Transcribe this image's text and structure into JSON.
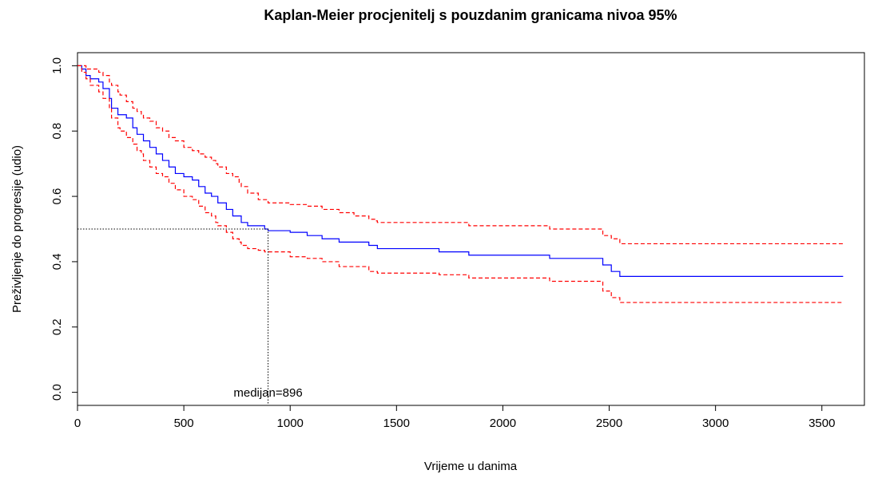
{
  "chart_data": {
    "type": "step",
    "title": "Kaplan-Meier procjenitelj s pouzdanim granicama nivoa 95%",
    "xlabel": "Vrijeme u danima",
    "ylabel": "Preživljenje do progresije (udio)",
    "x": [
      0,
      20,
      40,
      60,
      100,
      120,
      150,
      160,
      190,
      200,
      230,
      260,
      280,
      300,
      310,
      340,
      370,
      400,
      430,
      460,
      500,
      540,
      570,
      600,
      630,
      650,
      660,
      700,
      730,
      760,
      770,
      800,
      850,
      880,
      896,
      1000,
      1080,
      1150,
      1230,
      1300,
      1370,
      1400,
      1410,
      1700,
      1840,
      2220,
      2470,
      2510,
      2550,
      3600
    ],
    "series": [
      {
        "color": "#0000ff",
        "dashed": false,
        "values": [
          1.0,
          0.99,
          0.97,
          0.96,
          0.95,
          0.93,
          0.9,
          0.87,
          0.85,
          0.85,
          0.84,
          0.81,
          0.79,
          0.79,
          0.77,
          0.75,
          0.73,
          0.71,
          0.69,
          0.67,
          0.66,
          0.65,
          0.63,
          0.61,
          0.6,
          0.6,
          0.58,
          0.56,
          0.54,
          0.54,
          0.52,
          0.51,
          0.51,
          0.5,
          0.495,
          0.49,
          0.48,
          0.47,
          0.46,
          0.46,
          0.45,
          0.45,
          0.44,
          0.43,
          0.42,
          0.41,
          0.39,
          0.37,
          0.355,
          0.355
        ]
      },
      {
        "color": "#ff0000",
        "dashed": true,
        "values": [
          1.0,
          1.0,
          0.99,
          0.99,
          0.98,
          0.97,
          0.95,
          0.94,
          0.92,
          0.91,
          0.89,
          0.87,
          0.86,
          0.85,
          0.84,
          0.83,
          0.81,
          0.8,
          0.78,
          0.77,
          0.75,
          0.74,
          0.73,
          0.72,
          0.71,
          0.7,
          0.69,
          0.67,
          0.66,
          0.64,
          0.63,
          0.61,
          0.59,
          0.59,
          0.58,
          0.575,
          0.57,
          0.56,
          0.55,
          0.54,
          0.53,
          0.525,
          0.52,
          0.52,
          0.51,
          0.5,
          0.48,
          0.47,
          0.455,
          0.455
        ]
      },
      {
        "color": "#ff0000",
        "dashed": true,
        "values": [
          1.0,
          0.98,
          0.96,
          0.94,
          0.92,
          0.9,
          0.87,
          0.84,
          0.81,
          0.8,
          0.78,
          0.76,
          0.74,
          0.73,
          0.71,
          0.69,
          0.67,
          0.66,
          0.64,
          0.62,
          0.6,
          0.59,
          0.57,
          0.55,
          0.54,
          0.52,
          0.51,
          0.49,
          0.47,
          0.46,
          0.45,
          0.44,
          0.435,
          0.43,
          0.43,
          0.415,
          0.41,
          0.4,
          0.385,
          0.385,
          0.37,
          0.37,
          0.365,
          0.36,
          0.35,
          0.34,
          0.31,
          0.29,
          0.275,
          0.275
        ]
      }
    ],
    "median_x": 896,
    "median_y": 0.5,
    "median_label": "medijan=896",
    "xlim": [
      0,
      3700
    ],
    "ylim": [
      -0.04,
      1.04
    ],
    "xticks": [
      0,
      500,
      1000,
      1500,
      2000,
      2500,
      3000,
      3500
    ],
    "yticks": [
      {
        "value": 0,
        "label": "0.0"
      },
      0.2,
      0.4,
      0.6,
      0.8,
      {
        "value": 1,
        "label": "1.0"
      }
    ]
  }
}
